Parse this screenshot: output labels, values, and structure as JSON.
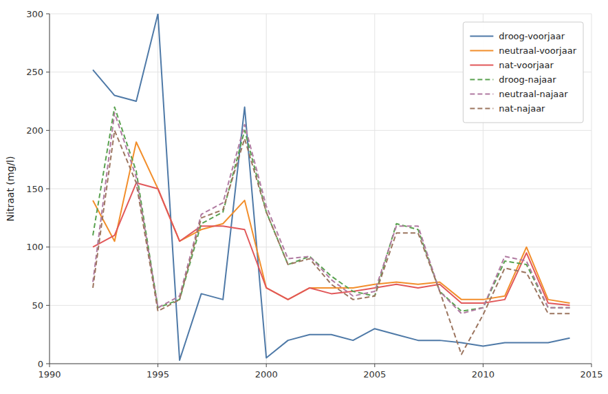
{
  "chart_data": {
    "type": "line",
    "y_label": "Nitraat (mg/l)",
    "x": [
      1992,
      1993,
      1994,
      1995,
      1996,
      1997,
      1998,
      1999,
      2000,
      2001,
      2002,
      2003,
      2004,
      2005,
      2006,
      2007,
      2008,
      2009,
      2010,
      2011,
      2012,
      2013,
      2014
    ],
    "series": [
      {
        "name": "droog-voorjaar",
        "line_style": "solid",
        "values": [
          252,
          230,
          225,
          300,
          3,
          60,
          55,
          220,
          5,
          20,
          25,
          25,
          20,
          30,
          25,
          20,
          20,
          18,
          15,
          18,
          18,
          18,
          22
        ]
      },
      {
        "name": "neutraal-voorjaar",
        "line_style": "solid",
        "values": [
          140,
          105,
          190,
          150,
          105,
          115,
          120,
          140,
          65,
          55,
          65,
          65,
          65,
          68,
          70,
          68,
          70,
          55,
          55,
          58,
          100,
          55,
          52
        ]
      },
      {
        "name": "nat-voorjaar",
        "line_style": "solid",
        "values": [
          100,
          110,
          155,
          150,
          105,
          118,
          118,
          115,
          65,
          55,
          65,
          60,
          62,
          65,
          68,
          65,
          68,
          52,
          52,
          55,
          95,
          52,
          50
        ]
      },
      {
        "name": "droog-najaar",
        "line_style": "dashed",
        "values": [
          110,
          220,
          165,
          48,
          55,
          120,
          130,
          200,
          130,
          85,
          92,
          75,
          62,
          58,
          120,
          115,
          62,
          45,
          48,
          88,
          85,
          48,
          48
        ]
      },
      {
        "name": "neutraal-najaar",
        "line_style": "dashed",
        "values": [
          70,
          215,
          160,
          48,
          58,
          128,
          138,
          205,
          135,
          90,
          92,
          72,
          58,
          62,
          118,
          118,
          62,
          43,
          48,
          92,
          88,
          48,
          48
        ]
      },
      {
        "name": "nat-najaar",
        "line_style": "dashed",
        "values": [
          65,
          200,
          155,
          45,
          55,
          125,
          132,
          193,
          130,
          85,
          90,
          68,
          55,
          58,
          112,
          112,
          62,
          8,
          42,
          82,
          78,
          43,
          43
        ]
      }
    ],
    "xlim": [
      1990,
      2015
    ],
    "ylim": [
      0,
      300
    ],
    "xticks": [
      1990,
      1995,
      2000,
      2005,
      2010,
      2015
    ],
    "yticks": [
      0,
      50,
      100,
      150,
      200,
      250,
      300
    ],
    "grid": true,
    "legend": "upper right"
  }
}
